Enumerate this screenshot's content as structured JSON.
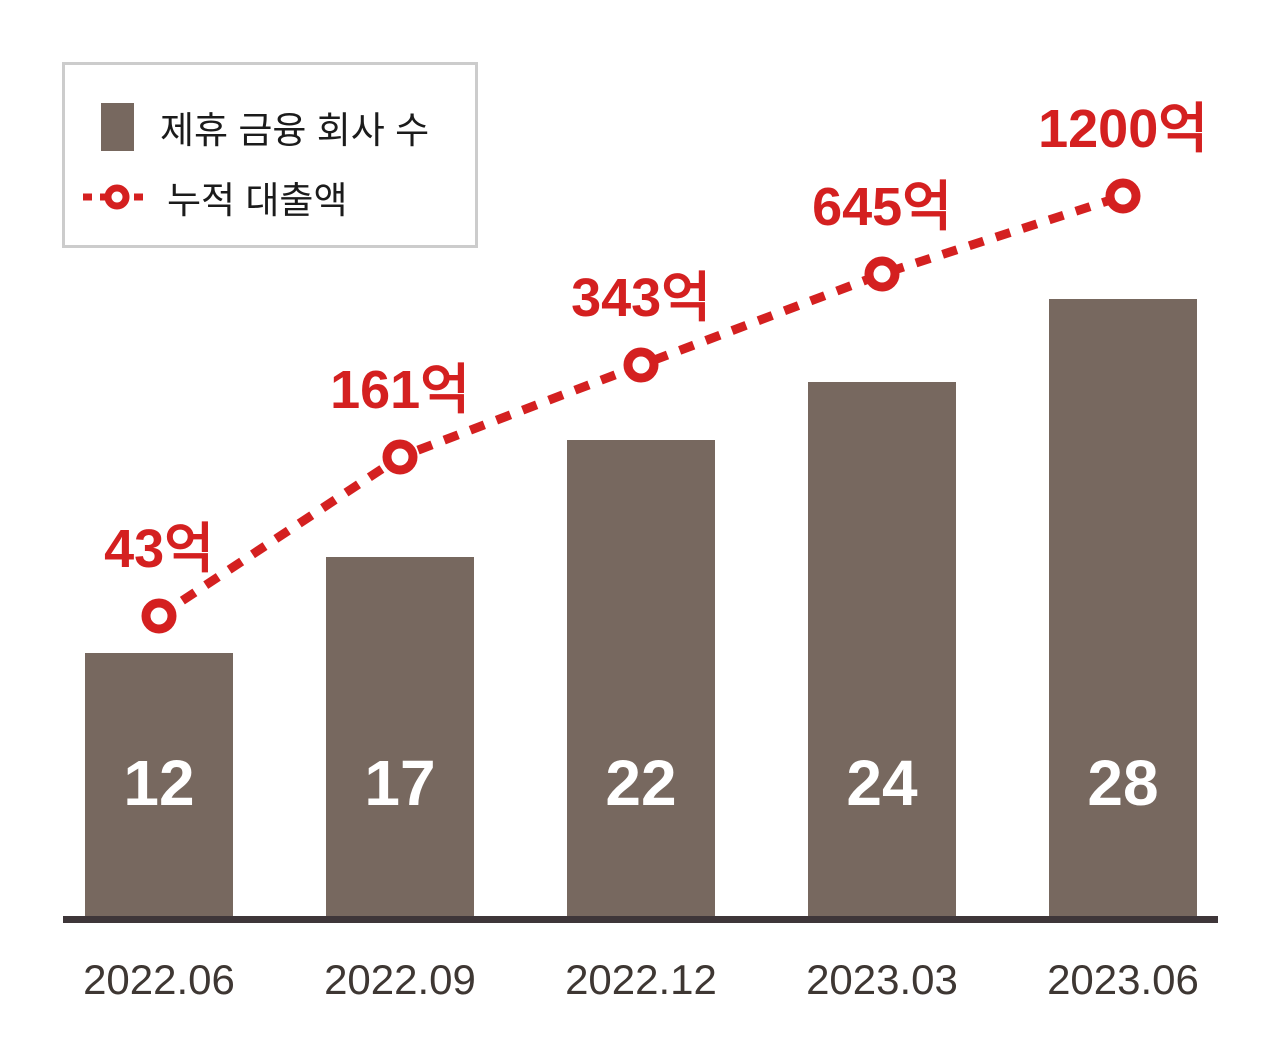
{
  "chart_data": {
    "type": "bar",
    "subtype": "bar-line-combo",
    "title": "",
    "categories": [
      "2022.06",
      "2022.09",
      "2022.12",
      "2023.03",
      "2023.06"
    ],
    "series": [
      {
        "name": "제휴 금융 회사 수",
        "type": "bar",
        "values": [
          12,
          17,
          22,
          24,
          28
        ],
        "color": "#77685f",
        "value_label_color": "#ffffff"
      },
      {
        "name": "누적 대출액",
        "type": "line",
        "style": "dashed",
        "marker": "open-circle",
        "values": [
          43,
          161,
          343,
          645,
          1200
        ],
        "value_labels": [
          "43억",
          "161억",
          "343억",
          "645억",
          "1200억"
        ],
        "color": "#d42020"
      }
    ],
    "xlabel": "",
    "ylabel": "",
    "grid": false,
    "legend_position": "top-left",
    "axis_color": "#3e3639",
    "tick_label_color": "#3e3733"
  },
  "legend": {
    "bar_label": "제휴 금융 회사 수",
    "line_label": "누적 대출액"
  }
}
